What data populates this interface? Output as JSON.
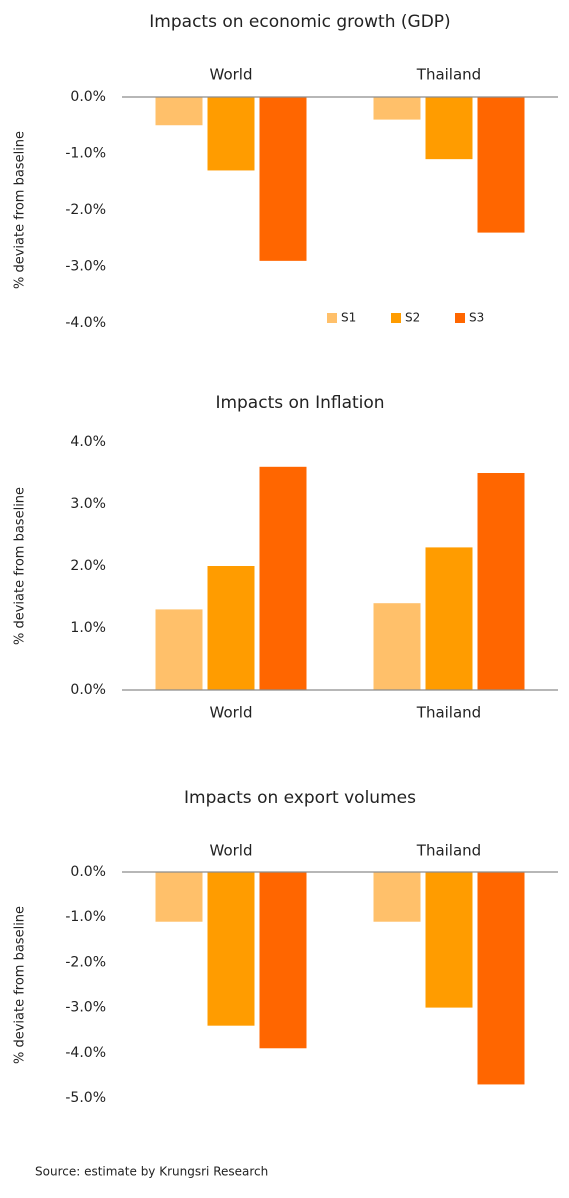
{
  "chart_data": [
    {
      "type": "bar",
      "title": "Impacts on economic growth (GDP)",
      "y_label": "% deviate from baseline",
      "categories": [
        "World",
        "Thailand"
      ],
      "series": [
        {
          "name": "S1",
          "color": "#ffc06a",
          "values": [
            -0.5,
            -0.4
          ]
        },
        {
          "name": "S2",
          "color": "#ff9c00",
          "values": [
            -1.3,
            -1.1
          ]
        },
        {
          "name": "S3",
          "color": "#ff6600",
          "values": [
            -2.9,
            -2.4
          ]
        }
      ],
      "ylim": [
        -4,
        0
      ],
      "yticks": [
        {
          "value": 0,
          "label": "0.0%"
        },
        {
          "value": -1,
          "label": "-1.0%"
        },
        {
          "value": -2,
          "label": "-2.0%"
        },
        {
          "value": -3,
          "label": "-3.0%"
        },
        {
          "value": -4,
          "label": "-4.0%"
        }
      ],
      "legend": "lower right"
    },
    {
      "type": "bar",
      "title": "Impacts on Inflation",
      "y_label": "% deviate from baseline",
      "categories": [
        "World",
        "Thailand"
      ],
      "series": [
        {
          "color": "#ffc06a",
          "values": [
            1.3,
            1.4
          ]
        },
        {
          "color": "#ff9c00",
          "values": [
            2.0,
            2.3
          ]
        },
        {
          "color": "#ff6600",
          "values": [
            3.6,
            3.5
          ]
        }
      ],
      "ylim": [
        0,
        4
      ],
      "yticks": [
        {
          "value": 0,
          "label": "0.0%"
        },
        {
          "value": 1,
          "label": "1.0%"
        },
        {
          "value": 2,
          "label": "2.0%"
        },
        {
          "value": 3,
          "label": "3.0%"
        },
        {
          "value": 4,
          "label": "4.0%"
        }
      ]
    },
    {
      "type": "bar",
      "title": "Impacts on export volumes",
      "y_label": "% deviate from baseline",
      "categories": [
        "World",
        "Thailand"
      ],
      "series": [
        {
          "color": "#ffc06a",
          "values": [
            -1.1,
            -1.1
          ]
        },
        {
          "color": "#ff9c00",
          "values": [
            -3.4,
            -3.0
          ]
        },
        {
          "color": "#ff6600",
          "values": [
            -3.9,
            -4.7
          ]
        }
      ],
      "ylim": [
        -5,
        0
      ],
      "yticks": [
        {
          "value": 0,
          "label": "0.0%"
        },
        {
          "value": -1,
          "label": "-1.0%"
        },
        {
          "value": -2,
          "label": "-2.0%"
        },
        {
          "value": -3,
          "label": "-3.0%"
        },
        {
          "value": -4,
          "label": "-4.0%"
        },
        {
          "value": -5,
          "label": "-5.0%"
        }
      ]
    }
  ],
  "source": "Source: estimate by Krungsri Research"
}
